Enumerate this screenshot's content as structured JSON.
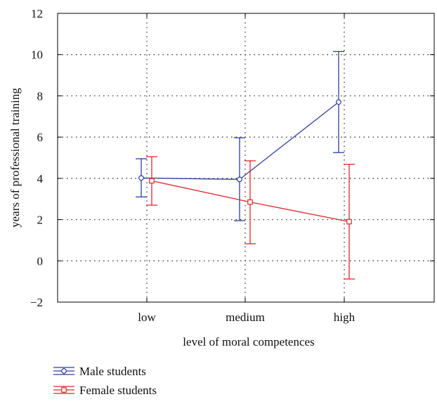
{
  "chart_data": {
    "type": "line",
    "title": "",
    "xlabel": "level of moral competences",
    "ylabel": "years of professional training",
    "categories": [
      "low",
      "medium",
      "high"
    ],
    "ylim": [
      -2,
      12
    ],
    "yticks": [
      -2,
      0,
      2,
      4,
      6,
      8,
      10,
      12
    ],
    "grid": true,
    "error_bars": true,
    "legend_position": "bottom-left, below plot",
    "series": [
      {
        "name": "Male students",
        "color": "#2e3f99",
        "marker": "circle",
        "values": [
          4.02,
          3.95,
          7.7
        ],
        "lower": [
          3.1,
          1.95,
          5.25
        ],
        "upper": [
          4.95,
          5.97,
          10.15
        ]
      },
      {
        "name": "Female students",
        "color": "#e3262a",
        "marker": "square",
        "values": [
          3.88,
          2.85,
          1.9
        ],
        "lower": [
          2.7,
          0.83,
          -0.88
        ],
        "upper": [
          5.05,
          4.85,
          4.68
        ]
      }
    ]
  }
}
